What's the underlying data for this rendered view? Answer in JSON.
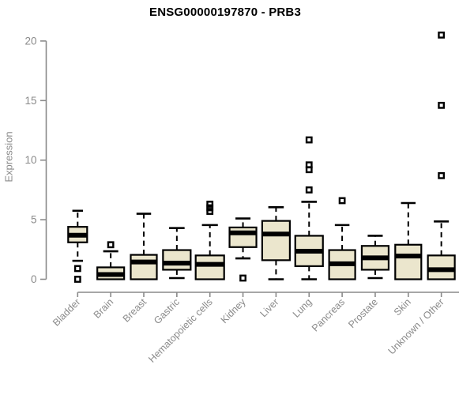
{
  "chart_data": {
    "type": "boxplot",
    "title": "ENSG00000197870 - PRB3",
    "ylabel": "Expression",
    "xlabel": "",
    "ylim": [
      0,
      20
    ],
    "yticks": [
      0,
      5,
      10,
      15,
      20
    ],
    "grid": false,
    "legend": "none",
    "categories": [
      "Bladder",
      "Brain",
      "Breast",
      "Gastric",
      "Hematopoietic cells",
      "Kidney",
      "Liver",
      "Lung",
      "Pancreas",
      "Prostate",
      "Skin",
      "Unknown / Other"
    ],
    "boxes": [
      {
        "category": "Bladder",
        "low": 1.55,
        "q1": 3.1,
        "median": 3.7,
        "q3": 4.4,
        "high": 5.75,
        "outliers": [
          0.9,
          0
        ],
        "width": 24
      },
      {
        "category": "Brain",
        "low": null,
        "q1": 0,
        "median": 0.4,
        "q3": 1.0,
        "high": 2.35,
        "outliers": [
          2.9
        ],
        "width": 34
      },
      {
        "category": "Breast",
        "low": null,
        "q1": 0,
        "median": 1.45,
        "q3": 2.05,
        "high": 5.5,
        "outliers": [],
        "width": 33
      },
      {
        "category": "Gastric",
        "low": 0.1,
        "q1": 0.8,
        "median": 1.35,
        "q3": 2.45,
        "high": 4.3,
        "outliers": [],
        "width": 35
      },
      {
        "category": "Hematopoietic cells",
        "low": null,
        "q1": 0,
        "median": 1.25,
        "q3": 2.0,
        "high": 4.55,
        "outliers": [
          5.7,
          6.0,
          6.3
        ],
        "width": 36
      },
      {
        "category": "Kidney",
        "low": 1.75,
        "q1": 2.7,
        "median": 3.9,
        "q3": 4.35,
        "high": 5.1,
        "outliers": [
          0.1
        ],
        "width": 34
      },
      {
        "category": "Liver",
        "low": 0,
        "q1": 1.6,
        "median": 3.8,
        "q3": 4.9,
        "high": 6.05,
        "outliers": [],
        "width": 35
      },
      {
        "category": "Lung",
        "low": 0,
        "q1": 1.1,
        "median": 2.35,
        "q3": 3.65,
        "high": 6.5,
        "outliers": [
          7.5,
          9.2,
          9.6,
          11.7
        ],
        "width": 35
      },
      {
        "category": "Pancreas",
        "low": null,
        "q1": 0,
        "median": 1.3,
        "q3": 2.45,
        "high": 4.55,
        "outliers": [
          6.6
        ],
        "width": 33
      },
      {
        "category": "Prostate",
        "low": 0.1,
        "q1": 0.8,
        "median": 1.8,
        "q3": 2.8,
        "high": 3.65,
        "outliers": [],
        "width": 34
      },
      {
        "category": "Skin",
        "low": null,
        "q1": 0,
        "median": 1.95,
        "q3": 2.9,
        "high": 6.4,
        "outliers": [],
        "width": 33
      },
      {
        "category": "Unknown / Other",
        "low": null,
        "q1": 0,
        "median": 0.8,
        "q3": 2.0,
        "high": 4.85,
        "outliers": [
          8.7,
          14.6,
          20.5
        ],
        "width": 34
      }
    ]
  },
  "colors": {
    "box_fill": "#EBE6CD",
    "box_stroke": "#000000",
    "median": "#000000",
    "whisker": "#000000",
    "outlier": "#000000",
    "axis": "#8A8A8A",
    "tick_label": "#8A8A8A",
    "category_label": "#8A8A8A",
    "title": "#000000",
    "background": "#FFFFFF"
  }
}
